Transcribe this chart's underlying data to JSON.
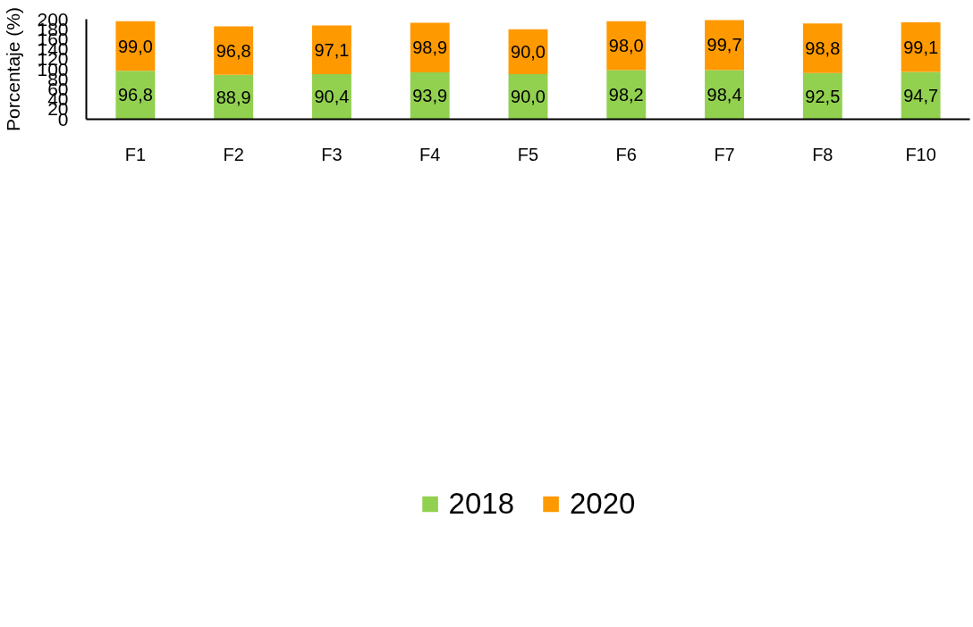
{
  "chart_data": {
    "type": "bar",
    "stacked": true,
    "ylabel": "Porcentaje (%)",
    "categories": [
      "F1",
      "F2",
      "F3",
      "F4",
      "F5",
      "F6",
      "F7",
      "F8",
      "F10"
    ],
    "series": [
      {
        "name": "2018",
        "color": "#92d050",
        "values": [
          96.8,
          88.9,
          90.4,
          93.9,
          90.0,
          98.2,
          98.4,
          92.5,
          94.7
        ],
        "value_labels": [
          "96,8",
          "88,9",
          "90,4",
          "93,9",
          "90,0",
          "98,2",
          "98,4",
          "92,5",
          "94,7"
        ]
      },
      {
        "name": "2020",
        "color": "#ff9900",
        "values": [
          99.0,
          96.8,
          97.1,
          98.9,
          90.0,
          98.0,
          99.7,
          98.8,
          99.1
        ],
        "value_labels": [
          "99,0",
          "96,8",
          "97,1",
          "98,9",
          "90,0",
          "98,0",
          "99,7",
          "98,8",
          "99,1"
        ]
      }
    ],
    "ylim": [
      0,
      200
    ],
    "yticks": [
      0,
      20,
      40,
      60,
      80,
      100,
      120,
      140,
      160,
      180,
      200
    ],
    "legend": "bottom"
  }
}
